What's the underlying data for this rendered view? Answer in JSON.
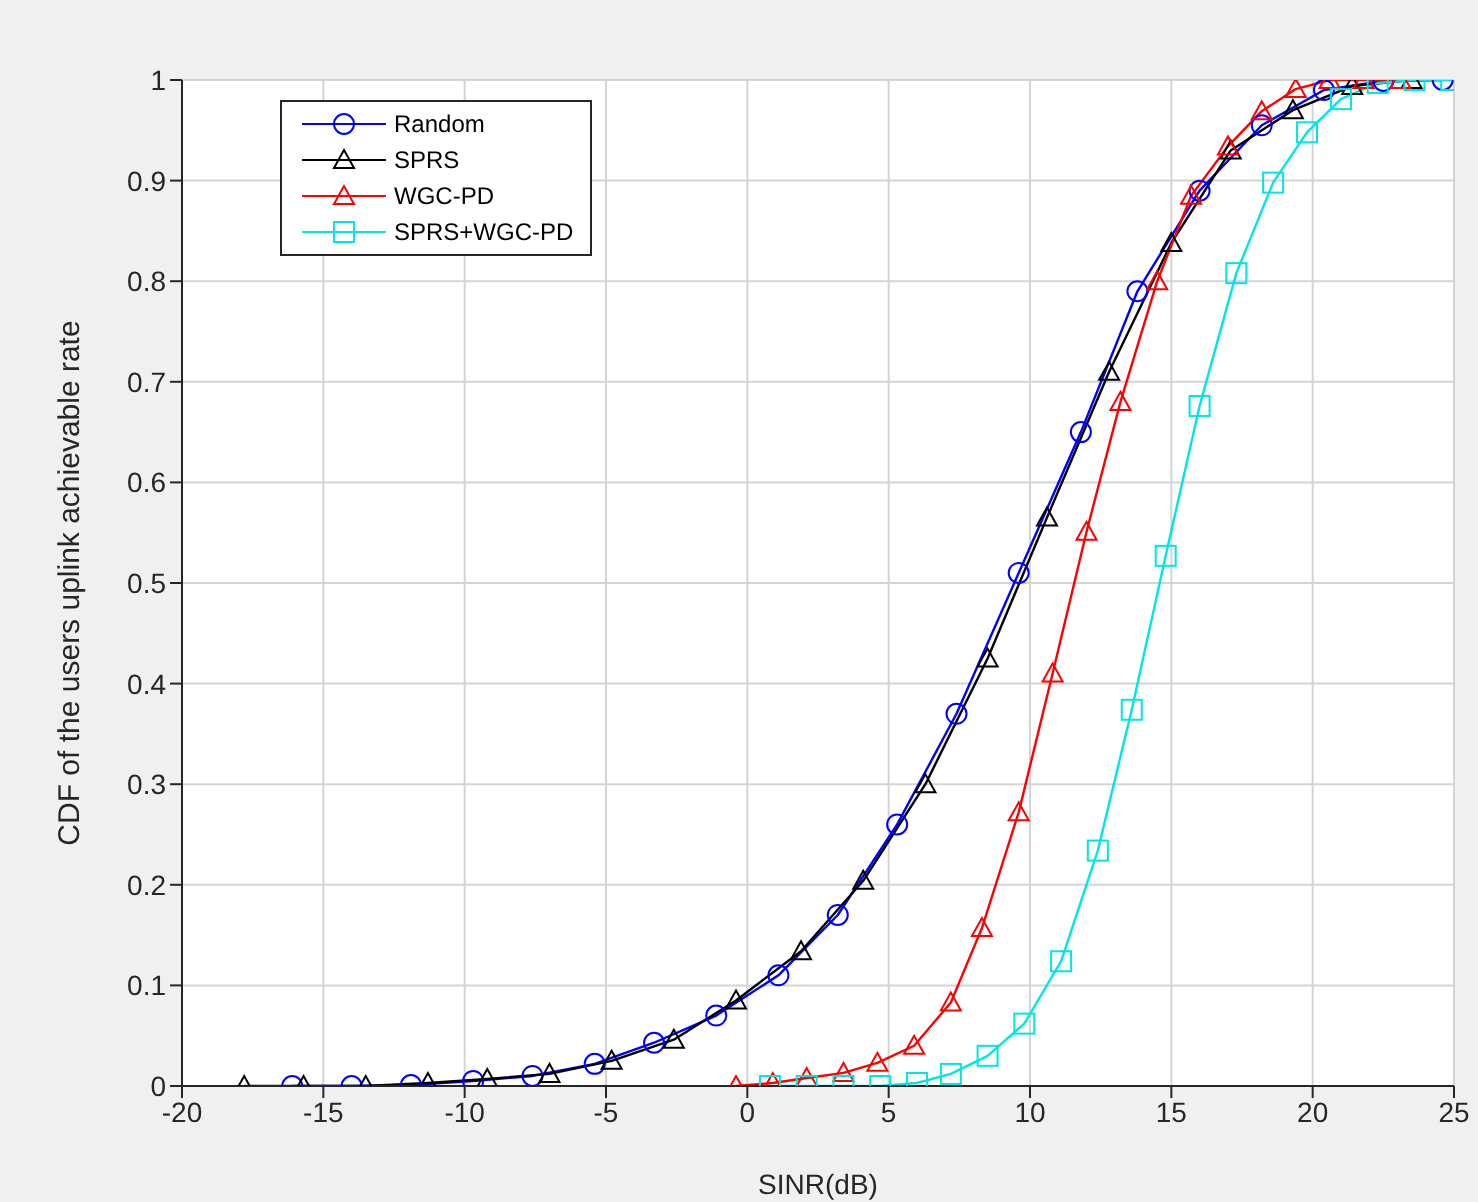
{
  "chart_data": {
    "type": "line",
    "xlabel": "SINR(dB)",
    "ylabel": "CDF of the users uplink achievable rate",
    "xlim": [
      -20,
      25
    ],
    "xticks": [
      -20,
      -15,
      -10,
      -5,
      0,
      5,
      10,
      15,
      20,
      25
    ],
    "ylim": [
      0,
      1
    ],
    "yticks": [
      0,
      0.1,
      0.2,
      0.3,
      0.4,
      0.5,
      0.6,
      0.7,
      0.8,
      0.9,
      1
    ],
    "grid": true,
    "legend": "top left",
    "line_style": "solid",
    "series": [
      {
        "name": "Random",
        "color": "#0000ff",
        "marker": "circle",
        "x": [
          -16.1,
          -14,
          -11.9,
          -9.7,
          -7.6,
          -5.4,
          -3.3,
          -1.1,
          1.1,
          3.2,
          5.3,
          7.4,
          9.6,
          11.8,
          13.8,
          16.0,
          18.2,
          20.4,
          22.5,
          24.6
        ],
        "values": [
          0,
          0,
          0.001,
          0.005,
          0.01,
          0.022,
          0.043,
          0.07,
          0.11,
          0.17,
          0.26,
          0.37,
          0.51,
          0.65,
          0.79,
          0.89,
          0.955,
          0.99,
          0.999,
          1
        ]
      },
      {
        "name": "SPRS",
        "color": "#000000",
        "marker": "triangle",
        "x": [
          -17.8,
          -15.7,
          -13.5,
          -11.3,
          -9.2,
          -7.0,
          -4.8,
          -2.6,
          -0.4,
          1.9,
          4.1,
          6.3,
          8.5,
          10.6,
          12.8,
          15.0,
          17.1,
          19.3,
          21.4,
          23.5
        ],
        "values": [
          0,
          0,
          0,
          0.003,
          0.007,
          0.012,
          0.025,
          0.046,
          0.085,
          0.134,
          0.204,
          0.3,
          0.425,
          0.565,
          0.71,
          0.838,
          0.93,
          0.97,
          0.994,
          1
        ]
      },
      {
        "name": "WGC-PD",
        "color": "#ff0000",
        "marker": "triangle",
        "x": [
          -0.4,
          0.9,
          2.1,
          3.4,
          4.6,
          5.9,
          7.2,
          8.3,
          9.6,
          10.8,
          12.0,
          13.2,
          14.5,
          15.7,
          17.0,
          18.2,
          19.4,
          20.6,
          21.8,
          23.1
        ],
        "values": [
          0,
          0.003,
          0.008,
          0.013,
          0.023,
          0.04,
          0.083,
          0.157,
          0.272,
          0.41,
          0.551,
          0.68,
          0.8,
          0.885,
          0.934,
          0.969,
          0.991,
          1,
          1,
          1
        ]
      },
      {
        "name": "SPRS+WGC-PD",
        "color": "#00e5e5",
        "marker": "square",
        "x": [
          0.8,
          2.1,
          3.4,
          4.7,
          6.0,
          7.2,
          8.5,
          9.8,
          11.1,
          12.4,
          13.6,
          14.8,
          16.0,
          17.3,
          18.6,
          19.8,
          21.0,
          22.3,
          23.6,
          24.9
        ],
        "values": [
          0,
          0,
          0,
          0,
          0.003,
          0.012,
          0.03,
          0.062,
          0.124,
          0.234,
          0.374,
          0.527,
          0.676,
          0.808,
          0.898,
          0.948,
          0.981,
          0.997,
          1,
          1
        ]
      }
    ]
  }
}
